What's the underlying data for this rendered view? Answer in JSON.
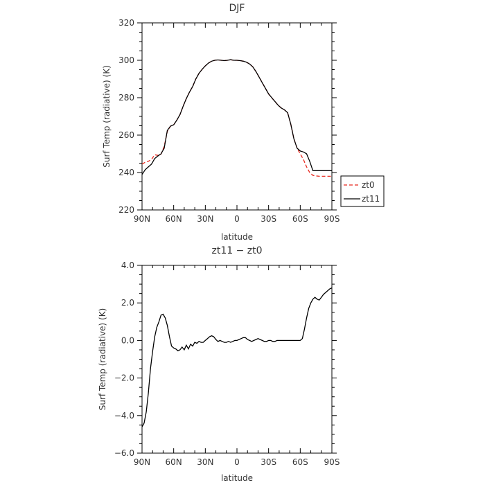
{
  "chart_data": [
    {
      "type": "line",
      "title": "DJF",
      "xlabel": "latitude",
      "ylabel": "Surf Temp (radiative) (K)",
      "xlim": [
        90,
        -90
      ],
      "ylim": [
        220,
        320
      ],
      "x_ticks": [
        90,
        60,
        30,
        0,
        -30,
        -60,
        -90
      ],
      "x_tick_labels": [
        "90N",
        "60N",
        "30N",
        "0",
        "30S",
        "60S",
        "90S"
      ],
      "y_ticks": [
        220,
        240,
        260,
        280,
        300,
        320
      ],
      "y_tick_labels": [
        "220",
        "240",
        "260",
        "280",
        "300",
        "320"
      ],
      "legend": {
        "placement": "right",
        "entries": [
          "zt0",
          "zt11"
        ]
      },
      "series": [
        {
          "name": "zt0",
          "color": "#e8281e",
          "dash": "dashed",
          "x": [
            90,
            87,
            84,
            81,
            78,
            75,
            72,
            69,
            66,
            63,
            60,
            57,
            54,
            51,
            48,
            45,
            42,
            39,
            36,
            33,
            30,
            27,
            24,
            21,
            18,
            15,
            12,
            9,
            6,
            3,
            0,
            -3,
            -6,
            -9,
            -12,
            -15,
            -18,
            -21,
            -24,
            -27,
            -30,
            -33,
            -36,
            -39,
            -42,
            -45,
            -48,
            -51,
            -54,
            -57,
            -60,
            -63,
            -66,
            -69,
            -72,
            -75,
            -78,
            -81,
            -84,
            -87,
            -90
          ],
          "y": [
            244.5,
            245.5,
            246.0,
            247.0,
            249.5,
            249.2,
            249.8,
            254.0,
            262.0,
            264.8,
            265.5,
            268.0,
            271.0,
            275.5,
            279.5,
            283.0,
            286.0,
            290.0,
            293.0,
            295.2,
            297.0,
            298.5,
            299.5,
            300.0,
            300.2,
            300.0,
            299.8,
            300.0,
            300.3,
            300.0,
            300.0,
            299.8,
            299.5,
            299.0,
            298.0,
            296.5,
            294.0,
            291.0,
            288.0,
            285.0,
            282.0,
            280.0,
            278.0,
            276.0,
            274.5,
            273.5,
            272.0,
            266.0,
            258.0,
            253.0,
            250.0,
            247.0,
            243.0,
            240.0,
            238.5,
            238.2,
            238.0,
            238.0,
            238.0,
            238.0,
            238.0
          ]
        },
        {
          "name": "zt11",
          "color": "#000000",
          "dash": "solid",
          "x": [
            90,
            87,
            84,
            81,
            78,
            75,
            72,
            69,
            66,
            63,
            60,
            57,
            54,
            51,
            48,
            45,
            42,
            39,
            36,
            33,
            30,
            27,
            24,
            21,
            18,
            15,
            12,
            9,
            6,
            3,
            0,
            -3,
            -6,
            -9,
            -12,
            -15,
            -18,
            -21,
            -24,
            -27,
            -30,
            -33,
            -36,
            -39,
            -42,
            -45,
            -48,
            -51,
            -54,
            -57,
            -60,
            -63,
            -66,
            -69,
            -72,
            -75,
            -78,
            -81,
            -84,
            -87,
            -90
          ],
          "y": [
            239.0,
            241.5,
            243.0,
            244.5,
            247.5,
            248.8,
            250.0,
            253.0,
            262.5,
            264.8,
            265.5,
            268.0,
            271.0,
            275.5,
            279.5,
            283.0,
            286.0,
            290.0,
            293.0,
            295.2,
            297.0,
            298.5,
            299.5,
            300.0,
            300.2,
            300.0,
            299.8,
            300.0,
            300.3,
            300.0,
            300.0,
            299.8,
            299.5,
            299.0,
            298.0,
            296.5,
            294.0,
            291.0,
            288.0,
            285.0,
            282.0,
            280.0,
            278.0,
            276.0,
            274.5,
            273.5,
            272.0,
            266.0,
            258.0,
            253.0,
            251.5,
            251.0,
            250.0,
            246.0,
            241.0,
            241.0,
            241.0,
            241.0,
            241.0,
            241.0,
            241.0
          ]
        }
      ]
    },
    {
      "type": "line",
      "title": "zt11 − zt0",
      "xlabel": "latitude",
      "ylabel": "Surf Temp (radiative) (K)",
      "xlim": [
        90,
        -90
      ],
      "ylim": [
        -6,
        4
      ],
      "x_ticks": [
        90,
        60,
        30,
        0,
        -30,
        -60,
        -90
      ],
      "x_tick_labels": [
        "90N",
        "60N",
        "30N",
        "0",
        "30S",
        "60S",
        "90S"
      ],
      "y_ticks": [
        -6,
        -4,
        -2,
        0,
        2,
        4
      ],
      "y_tick_labels": [
        "−6.0",
        "−4.0",
        "−2.0",
        "0.0",
        "2.0",
        "4.0"
      ],
      "series": [
        {
          "color": "#000000",
          "dash": "solid",
          "x": [
            90,
            88,
            86,
            84,
            82,
            80,
            78,
            76,
            74,
            72,
            70,
            68,
            66,
            64,
            62,
            60,
            58,
            56,
            54,
            52,
            50,
            48,
            46,
            44,
            42,
            40,
            38,
            36,
            34,
            32,
            30,
            28,
            26,
            24,
            22,
            20,
            18,
            16,
            14,
            12,
            10,
            8,
            6,
            4,
            2,
            0,
            -2,
            -4,
            -6,
            -8,
            -10,
            -12,
            -14,
            -16,
            -18,
            -20,
            -22,
            -24,
            -26,
            -28,
            -30,
            -32,
            -34,
            -36,
            -38,
            -40,
            -42,
            -44,
            -46,
            -48,
            -50,
            -52,
            -54,
            -56,
            -58,
            -60,
            -62,
            -64,
            -66,
            -68,
            -70,
            -72,
            -74,
            -76,
            -78,
            -80,
            -82,
            -84,
            -86,
            -88,
            -90
          ],
          "y": [
            -4.6,
            -4.4,
            -3.8,
            -2.8,
            -1.5,
            -0.6,
            0.2,
            0.7,
            1.0,
            1.35,
            1.4,
            1.2,
            0.8,
            0.2,
            -0.3,
            -0.4,
            -0.45,
            -0.55,
            -0.5,
            -0.35,
            -0.5,
            -0.25,
            -0.45,
            -0.2,
            -0.3,
            -0.1,
            -0.15,
            -0.05,
            -0.1,
            -0.1,
            0.0,
            0.1,
            0.2,
            0.25,
            0.2,
            0.05,
            -0.05,
            0.0,
            -0.05,
            -0.1,
            -0.1,
            -0.05,
            -0.1,
            -0.05,
            0.0,
            0.0,
            0.05,
            0.1,
            0.15,
            0.15,
            0.05,
            0.0,
            -0.05,
            0.0,
            0.05,
            0.1,
            0.05,
            0.0,
            -0.05,
            -0.05,
            0.0,
            0.0,
            -0.05,
            -0.05,
            0.0,
            0.0,
            0.0,
            0.0,
            0.0,
            0.0,
            0.0,
            0.0,
            0.0,
            0.0,
            0.0,
            0.0,
            0.1,
            0.6,
            1.2,
            1.7,
            2.0,
            2.2,
            2.3,
            2.2,
            2.15,
            2.3,
            2.45,
            2.55,
            2.65,
            2.75,
            2.8
          ]
        }
      ]
    }
  ]
}
